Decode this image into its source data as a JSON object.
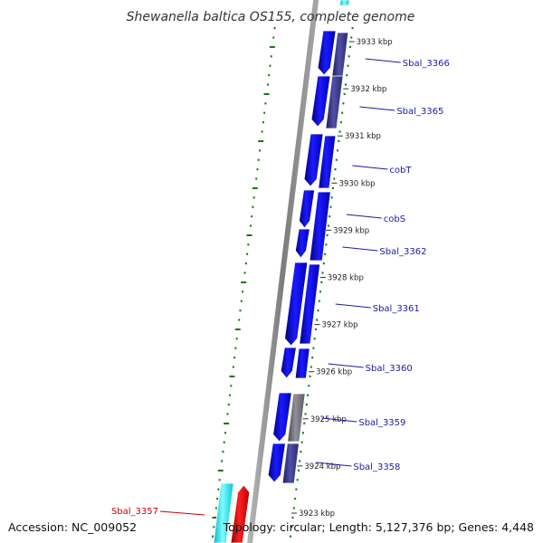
{
  "title": "Shewanella baltica OS155, complete genome",
  "footer": {
    "accession": "Accession: NC_009052",
    "stats": "Topology: circular; Length: 5,127,376 bp; Genes: 4,448"
  },
  "colors": {
    "gene_forward": "#1010e0",
    "gene_reverse": "#3a3a8c",
    "gene_gray": "#6e6e78",
    "gene_cyan": "#00e5ee",
    "gene_red": "#e00000",
    "axis": "#8a8a8a",
    "grid_dots": "#1a7a1a",
    "label_blue": "#1a1aa8",
    "label_red": "#cc0000"
  },
  "coordinates": [
    {
      "label": "3933 kbp"
    },
    {
      "label": "3932 kbp"
    },
    {
      "label": "3931 kbp"
    },
    {
      "label": "3930 kbp"
    },
    {
      "label": "3929 kbp"
    },
    {
      "label": "3928 kbp"
    },
    {
      "label": "3927 kbp"
    },
    {
      "label": "3926 kbp"
    },
    {
      "label": "3925 kbp"
    },
    {
      "label": "3924 kbp"
    },
    {
      "label": "3923 kbp"
    }
  ],
  "gene_labels": [
    {
      "text": "Sbal_3366"
    },
    {
      "text": "Sbal_3365"
    },
    {
      "text": "cobT"
    },
    {
      "text": "cobS"
    },
    {
      "text": "Sbal_3362"
    },
    {
      "text": "Sbal_3361"
    },
    {
      "text": "Sbal_3360"
    },
    {
      "text": "Sbal_3359"
    },
    {
      "text": "Sbal_3358"
    },
    {
      "text": "Sbal_3357",
      "highlight": true
    }
  ]
}
